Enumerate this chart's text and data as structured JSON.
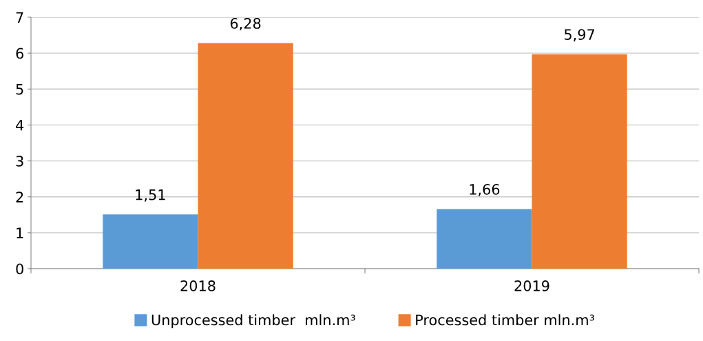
{
  "chart_data": {
    "type": "bar",
    "categories": [
      "2018",
      "2019"
    ],
    "series": [
      {
        "name": "Unprocessed timber  mln.m³",
        "color": "#5b9bd5",
        "values": [
          1.51,
          1.66
        ],
        "value_labels": [
          "1,51",
          "1,66"
        ]
      },
      {
        "name": "Processed timber mln.m³",
        "color": "#ed7d31",
        "values": [
          6.28,
          5.97
        ],
        "value_labels": [
          "6,28",
          "5,97"
        ]
      }
    ],
    "ylim": [
      0,
      7
    ],
    "yticks": [
      0,
      1,
      2,
      3,
      4,
      5,
      6,
      7
    ],
    "grid": "y",
    "legend": "bottom"
  }
}
